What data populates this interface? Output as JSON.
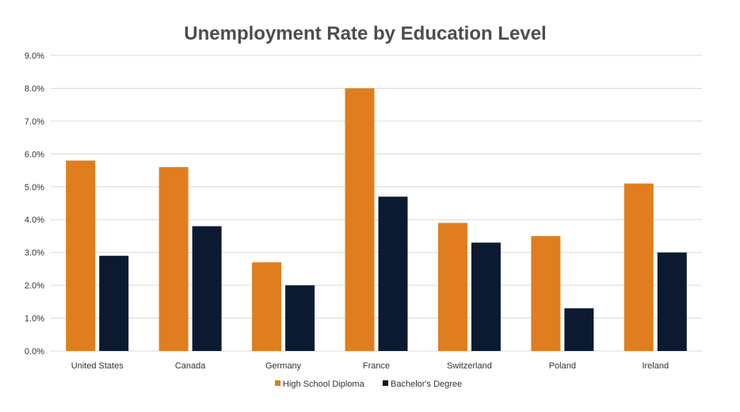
{
  "chart_data": {
    "type": "bar",
    "title": "Unemployment Rate by Education Level",
    "xlabel": "",
    "ylabel": "",
    "categories": [
      "United States",
      "Canada",
      "Germany",
      "France",
      "Switzerland",
      "Poland",
      "Ireland"
    ],
    "series": [
      {
        "name": "High School Diploma",
        "color": "#e07e1f",
        "values": [
          5.8,
          5.6,
          2.7,
          8.0,
          3.9,
          3.5,
          5.1
        ]
      },
      {
        "name": "Bachelor's Degree",
        "color": "#0b1a30",
        "values": [
          2.9,
          3.8,
          2.0,
          4.7,
          3.3,
          1.3,
          3.0
        ]
      }
    ],
    "ylim": [
      0,
      9
    ],
    "yticks": [
      "0.0%",
      "1.0%",
      "2.0%",
      "3.0%",
      "4.0%",
      "5.0%",
      "6.0%",
      "7.0%",
      "8.0%",
      "9.0%"
    ],
    "grid": true,
    "legend_position": "bottom"
  }
}
